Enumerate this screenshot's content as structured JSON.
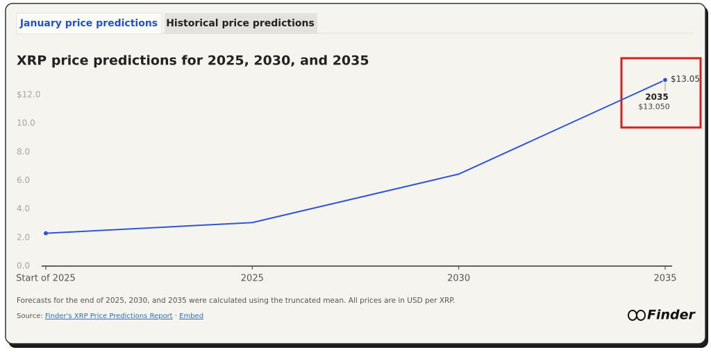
{
  "tabs": [
    "January price predictions",
    "Historical price predictions"
  ],
  "chart_data": {
    "type": "line",
    "title": "XRP price predictions for 2025, 2030, and 2035",
    "categories": [
      "Start of 2025",
      "2025",
      "2030",
      "2035"
    ],
    "values": [
      2.3,
      3.05,
      6.45,
      13.05
    ],
    "value_labels": [
      null,
      null,
      null,
      "$13.05"
    ],
    "color": "#2f55d4",
    "ylim": [
      0,
      12
    ],
    "yticks": [
      {
        "value": 0,
        "label": "0.0"
      },
      {
        "value": 2,
        "label": "2.0"
      },
      {
        "value": 4,
        "label": "4.0"
      },
      {
        "value": 6,
        "label": "6.0"
      },
      {
        "value": 8,
        "label": "8.0"
      },
      {
        "value": 10,
        "label": "10.0"
      },
      {
        "value": 12,
        "label": "$12.0"
      }
    ],
    "grid": false,
    "tooltip": {
      "label": "2035",
      "value": "$13.050"
    }
  },
  "footer": {
    "note": "Forecasts for the end of 2025, 2030, and 2035 were calculated using the truncated mean. All prices are in USD per XRP.",
    "source_prefix": "Source: ",
    "source_link": "Finder's XRP Price Predictions Report",
    "separator": " · ",
    "embed": "Embed"
  },
  "logo": "Finder"
}
